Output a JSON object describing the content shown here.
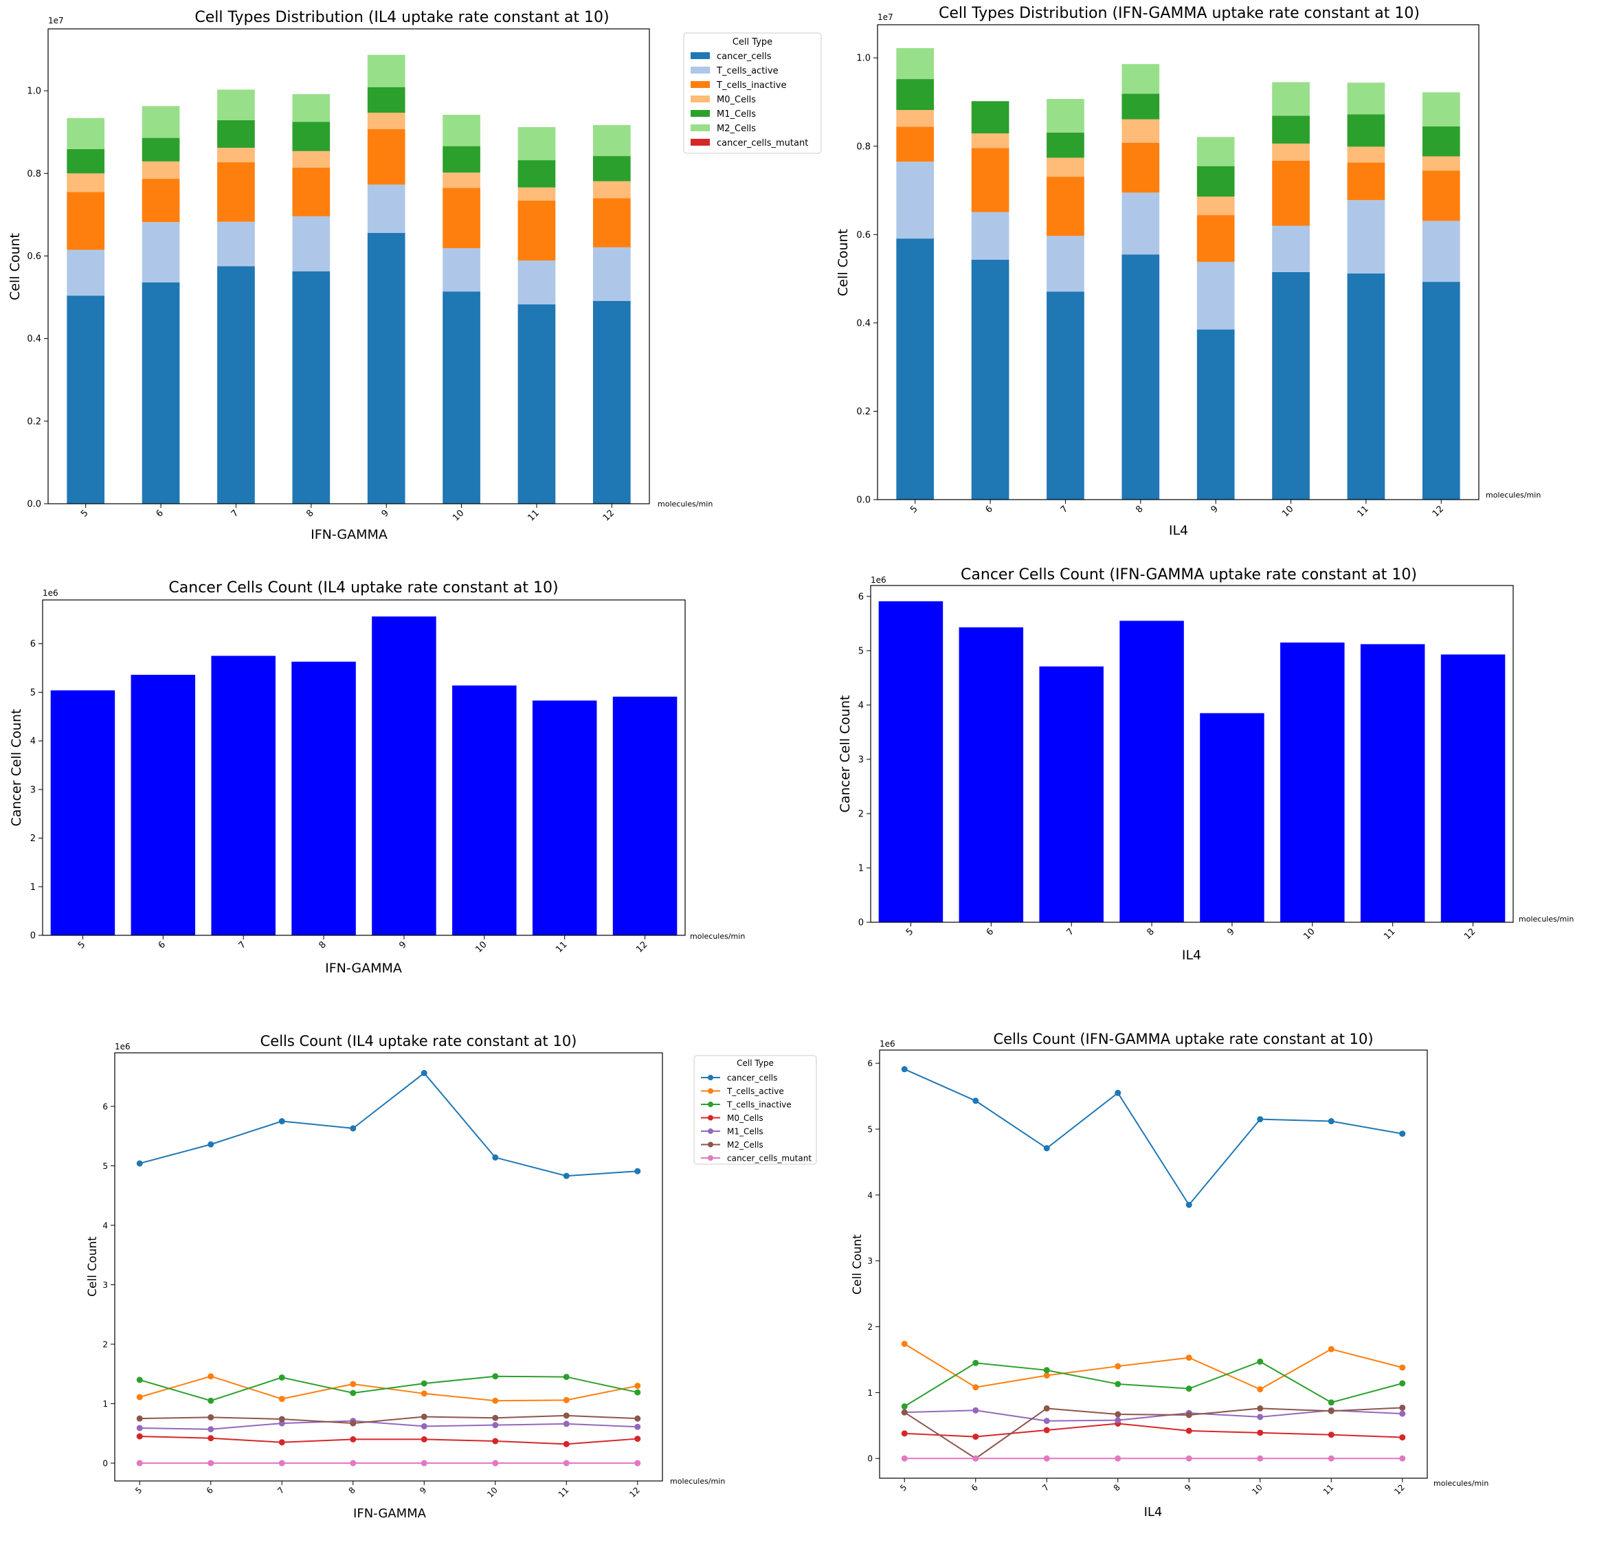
{
  "colors": {
    "cancer_cells": "#1f77b4",
    "T_cells_active": "#aec7e8",
    "T_cells_inactive": "#ff7f0e",
    "M0_Cells": "#ffbb78",
    "M1_Cells": "#2ca02c",
    "M2_Cells": "#98df8a",
    "cancer_cells_mutant": "#d62728",
    "blue_bar": "#0000ff",
    "line_cancer_cells": "#1f77b4",
    "line_T_cells_active": "#ff7f0e",
    "line_T_cells_inactive": "#2ca02c",
    "line_M0_Cells": "#d62728",
    "line_M1_Cells": "#9467bd",
    "line_M2_Cells": "#8c564b",
    "line_cancer_cells_mutant": "#e377c2"
  },
  "chart_data": [
    {
      "id": "c1",
      "type": "bar",
      "stacked": true,
      "title": "Cell Types Distribution (IL4 uptake rate constant at 10)",
      "xlabel": "IFN-GAMMA",
      "ylabel": "Cell Count",
      "units": "molecules/min",
      "offset_text": "1e7",
      "scale": 10000000,
      "ylim": [
        0,
        11500000
      ],
      "yticks": [
        0,
        2000000,
        4000000,
        6000000,
        8000000,
        10000000
      ],
      "ytick_labels": [
        "0.0",
        "0.2",
        "0.4",
        "0.6",
        "0.8",
        "1.0"
      ],
      "categories": [
        "5",
        "6",
        "7",
        "8",
        "9",
        "10",
        "11",
        "12"
      ],
      "legend_title": "Cell Type",
      "legend_position": "outside-top-right",
      "series": [
        {
          "name": "cancer_cells",
          "values": [
            5040000,
            5360000,
            5750000,
            5630000,
            6560000,
            5140000,
            4830000,
            4910000
          ]
        },
        {
          "name": "T_cells_active",
          "values": [
            1110000,
            1460000,
            1080000,
            1330000,
            1170000,
            1050000,
            1060000,
            1300000
          ]
        },
        {
          "name": "T_cells_inactive",
          "values": [
            1400000,
            1050000,
            1440000,
            1180000,
            1340000,
            1460000,
            1450000,
            1190000
          ]
        },
        {
          "name": "M0_Cells",
          "values": [
            450000,
            420000,
            350000,
            400000,
            400000,
            370000,
            320000,
            410000
          ]
        },
        {
          "name": "M1_Cells",
          "values": [
            590000,
            570000,
            670000,
            710000,
            620000,
            640000,
            660000,
            610000
          ]
        },
        {
          "name": "M2_Cells",
          "values": [
            750000,
            770000,
            740000,
            670000,
            780000,
            760000,
            800000,
            750000
          ]
        },
        {
          "name": "cancer_cells_mutant",
          "values": [
            0,
            0,
            0,
            0,
            0,
            0,
            0,
            0
          ]
        }
      ]
    },
    {
      "id": "c2",
      "type": "bar",
      "stacked": true,
      "title": "Cell Types Distribution (IFN-GAMMA uptake rate constant at 10)",
      "xlabel": "IL4",
      "ylabel": "Cell Count",
      "units": "molecules/min",
      "offset_text": "1e7",
      "scale": 10000000,
      "ylim": [
        0,
        10750000
      ],
      "yticks": [
        0,
        2000000,
        4000000,
        6000000,
        8000000,
        10000000
      ],
      "ytick_labels": [
        "0.0",
        "0.2",
        "0.4",
        "0.6",
        "0.8",
        "1.0"
      ],
      "categories": [
        "5",
        "6",
        "7",
        "8",
        "9",
        "10",
        "11",
        "12"
      ],
      "series": [
        {
          "name": "cancer_cells",
          "values": [
            5910000,
            5430000,
            4710000,
            5550000,
            3850000,
            5150000,
            5120000,
            4930000
          ]
        },
        {
          "name": "T_cells_active",
          "values": [
            1740000,
            1080000,
            1260000,
            1400000,
            1530000,
            1050000,
            1660000,
            1380000
          ]
        },
        {
          "name": "T_cells_inactive",
          "values": [
            790000,
            1450000,
            1340000,
            1130000,
            1060000,
            1470000,
            850000,
            1140000
          ]
        },
        {
          "name": "M0_Cells",
          "values": [
            380000,
            330000,
            430000,
            530000,
            420000,
            390000,
            360000,
            320000
          ]
        },
        {
          "name": "M1_Cells",
          "values": [
            700000,
            730000,
            570000,
            580000,
            690000,
            630000,
            730000,
            680000
          ]
        },
        {
          "name": "M2_Cells",
          "values": [
            700000,
            0,
            760000,
            670000,
            660000,
            760000,
            720000,
            770000
          ]
        },
        {
          "name": "cancer_cells_mutant",
          "values": [
            0,
            0,
            0,
            0,
            0,
            0,
            0,
            0
          ]
        }
      ]
    },
    {
      "id": "c3",
      "type": "bar",
      "stacked": false,
      "title": "Cancer Cells Count (IL4 uptake rate constant at 10)",
      "xlabel": "IFN-GAMMA",
      "ylabel": "Cancer Cell Count",
      "units": "molecules/min",
      "offset_text": "1e6",
      "scale": 1000000,
      "ylim": [
        0,
        6900000
      ],
      "yticks": [
        0,
        1000000,
        2000000,
        3000000,
        4000000,
        5000000,
        6000000
      ],
      "ytick_labels": [
        "0",
        "1",
        "2",
        "3",
        "4",
        "5",
        "6"
      ],
      "categories": [
        "5",
        "6",
        "7",
        "8",
        "9",
        "10",
        "11",
        "12"
      ],
      "series": [
        {
          "name": "cancer_cells",
          "values": [
            5040000,
            5360000,
            5750000,
            5630000,
            6560000,
            5140000,
            4830000,
            4910000
          ]
        }
      ]
    },
    {
      "id": "c4",
      "type": "bar",
      "stacked": false,
      "title": "Cancer Cells Count (IFN-GAMMA uptake rate constant at 10)",
      "xlabel": "IL4",
      "ylabel": "Cancer Cell Count",
      "units": "molecules/min",
      "offset_text": "1e6",
      "scale": 1000000,
      "ylim": [
        0,
        6200000
      ],
      "yticks": [
        0,
        1000000,
        2000000,
        3000000,
        4000000,
        5000000,
        6000000
      ],
      "ytick_labels": [
        "0",
        "1",
        "2",
        "3",
        "4",
        "5",
        "6"
      ],
      "categories": [
        "5",
        "6",
        "7",
        "8",
        "9",
        "10",
        "11",
        "12"
      ],
      "series": [
        {
          "name": "cancer_cells",
          "values": [
            5910000,
            5430000,
            4710000,
            5550000,
            3850000,
            5150000,
            5120000,
            4930000
          ]
        }
      ]
    },
    {
      "id": "c5",
      "type": "line",
      "title": "Cells Count (IL4 uptake rate constant at 10)",
      "xlabel": "IFN-GAMMA",
      "ylabel": "Cell Count",
      "units": "molecules/min",
      "offset_text": "1e6",
      "scale": 1000000,
      "ylim": [
        -300000,
        6900000
      ],
      "yticks": [
        0,
        1000000,
        2000000,
        3000000,
        4000000,
        5000000,
        6000000
      ],
      "ytick_labels": [
        "0",
        "1",
        "2",
        "3",
        "4",
        "5",
        "6"
      ],
      "categories": [
        "5",
        "6",
        "7",
        "8",
        "9",
        "10",
        "11",
        "12"
      ],
      "legend_title": "Cell Type",
      "legend_position": "outside-top-right",
      "series": [
        {
          "name": "cancer_cells",
          "values": [
            5040000,
            5360000,
            5750000,
            5630000,
            6560000,
            5140000,
            4830000,
            4910000
          ]
        },
        {
          "name": "T_cells_active",
          "values": [
            1110000,
            1460000,
            1080000,
            1330000,
            1170000,
            1050000,
            1060000,
            1300000
          ]
        },
        {
          "name": "T_cells_inactive",
          "values": [
            1400000,
            1050000,
            1440000,
            1180000,
            1340000,
            1460000,
            1450000,
            1190000
          ]
        },
        {
          "name": "M0_Cells",
          "values": [
            450000,
            420000,
            350000,
            400000,
            400000,
            370000,
            320000,
            410000
          ]
        },
        {
          "name": "M1_Cells",
          "values": [
            590000,
            570000,
            670000,
            710000,
            620000,
            640000,
            660000,
            610000
          ]
        },
        {
          "name": "M2_Cells",
          "values": [
            750000,
            770000,
            740000,
            670000,
            780000,
            760000,
            800000,
            750000
          ]
        },
        {
          "name": "cancer_cells_mutant",
          "values": [
            0,
            0,
            0,
            0,
            0,
            0,
            0,
            0
          ]
        }
      ]
    },
    {
      "id": "c6",
      "type": "line",
      "title": "Cells Count (IFN-GAMMA uptake rate constant at 10)",
      "xlabel": "IL4",
      "ylabel": "Cell Count",
      "units": "molecules/min",
      "offset_text": "1e6",
      "scale": 1000000,
      "ylim": [
        -300000,
        6200000
      ],
      "yticks": [
        0,
        1000000,
        2000000,
        3000000,
        4000000,
        5000000,
        6000000
      ],
      "ytick_labels": [
        "0",
        "1",
        "2",
        "3",
        "4",
        "5",
        "6"
      ],
      "categories": [
        "5",
        "6",
        "7",
        "8",
        "9",
        "10",
        "11",
        "12"
      ],
      "series": [
        {
          "name": "cancer_cells",
          "values": [
            5910000,
            5430000,
            4710000,
            5550000,
            3850000,
            5150000,
            5120000,
            4930000
          ]
        },
        {
          "name": "T_cells_active",
          "values": [
            1740000,
            1080000,
            1260000,
            1400000,
            1530000,
            1050000,
            1660000,
            1380000
          ]
        },
        {
          "name": "T_cells_inactive",
          "values": [
            790000,
            1450000,
            1340000,
            1130000,
            1060000,
            1470000,
            850000,
            1140000
          ]
        },
        {
          "name": "M0_Cells",
          "values": [
            380000,
            330000,
            430000,
            530000,
            420000,
            390000,
            360000,
            320000
          ]
        },
        {
          "name": "M1_Cells",
          "values": [
            700000,
            730000,
            570000,
            580000,
            690000,
            630000,
            730000,
            680000
          ]
        },
        {
          "name": "M2_Cells",
          "values": [
            700000,
            0,
            760000,
            670000,
            660000,
            760000,
            720000,
            770000
          ]
        },
        {
          "name": "cancer_cells_mutant",
          "values": [
            0,
            0,
            0,
            0,
            0,
            0,
            0,
            0
          ]
        }
      ]
    }
  ]
}
